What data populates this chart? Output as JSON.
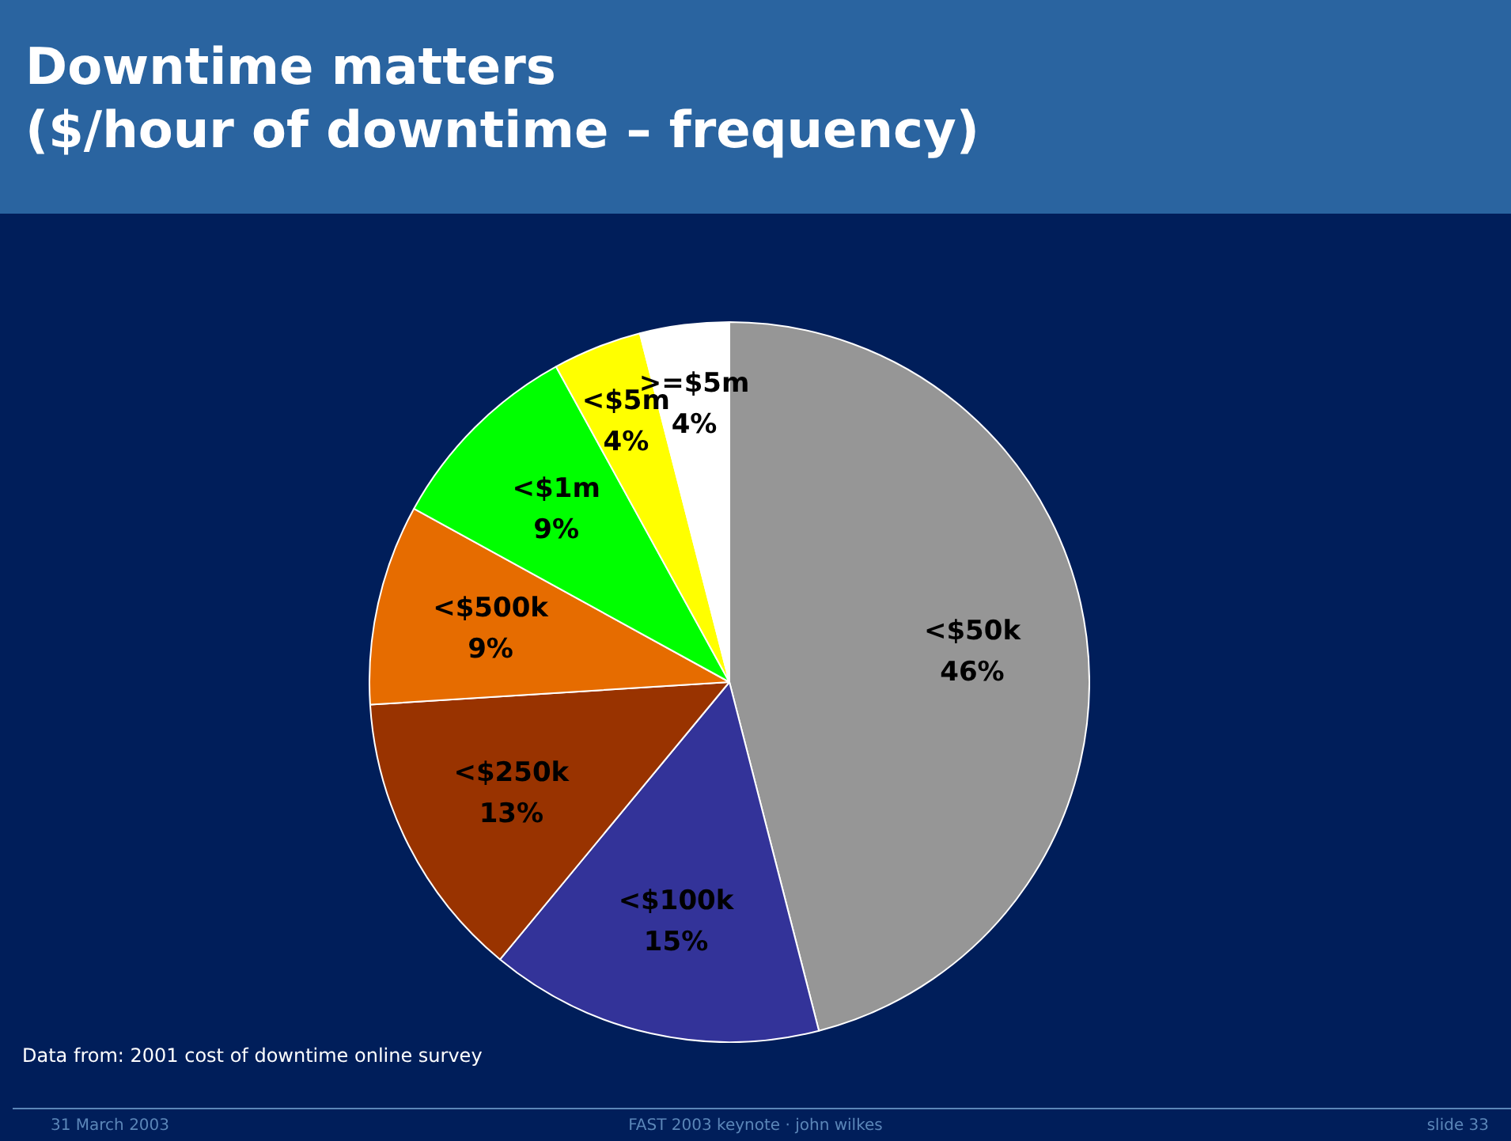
{
  "chart_data": {
    "type": "pie",
    "title": "Downtime matters\n($/hour of downtime – frequency)",
    "categories": [
      "<$50k",
      "<$100k",
      "<$250k",
      "<$500k",
      "<$1m",
      "<$5m",
      ">=$5m"
    ],
    "values": [
      46,
      15,
      13,
      9,
      9,
      4,
      4
    ],
    "colors": [
      "#969696",
      "#333399",
      "#993300",
      "#e66c00",
      "#00ff00",
      "#ffff00",
      "#ffffff"
    ],
    "value_labels": [
      "46%",
      "15%",
      "13%",
      "9%",
      "9%",
      "4%",
      "4%"
    ],
    "legend": false,
    "annotations": [
      "Data from: 2001 cost of downtime online survey",
      "31 March 2003",
      "FAST 2003 keynote · john wilkes",
      "slide 33"
    ]
  }
}
